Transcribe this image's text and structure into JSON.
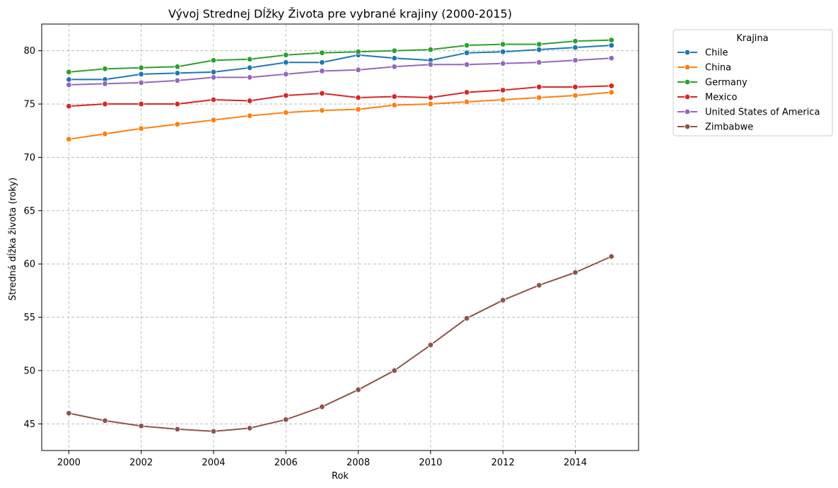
{
  "chart_data": {
    "type": "line",
    "title": "Vývoj Strednej Dĺžky Života pre vybrané krajiny (2000-2015)",
    "xlabel": "Rok",
    "ylabel": "Stredná dĺžka života (roky)",
    "x": [
      2000,
      2001,
      2002,
      2003,
      2004,
      2005,
      2006,
      2007,
      2008,
      2009,
      2010,
      2011,
      2012,
      2013,
      2014,
      2015
    ],
    "xlim": [
      1999.25,
      2015.75
    ],
    "ylim": [
      42.5,
      82.5
    ],
    "xticks": [
      2000,
      2002,
      2004,
      2006,
      2008,
      2010,
      2012,
      2014
    ],
    "xtick_labels": [
      "2000",
      "2002",
      "2004",
      "2006",
      "2008",
      "2010",
      "2012",
      "2014"
    ],
    "yticks": [
      45,
      50,
      55,
      60,
      65,
      70,
      75,
      80
    ],
    "ytick_labels": [
      "45",
      "50",
      "55",
      "60",
      "65",
      "70",
      "75",
      "80"
    ],
    "grid": true,
    "legend": {
      "title": "Krajina",
      "placement": "outside-upper-right"
    },
    "series": [
      {
        "name": "Chile",
        "color": "#1f77b4",
        "values": [
          77.3,
          77.3,
          77.8,
          77.9,
          78.0,
          78.4,
          78.9,
          78.9,
          79.6,
          79.3,
          79.1,
          79.8,
          79.9,
          80.1,
          80.3,
          80.5
        ]
      },
      {
        "name": "China",
        "color": "#ff7f0e",
        "values": [
          71.7,
          72.2,
          72.7,
          73.1,
          73.5,
          73.9,
          74.2,
          74.4,
          74.5,
          74.9,
          75.0,
          75.2,
          75.4,
          75.6,
          75.8,
          76.1
        ]
      },
      {
        "name": "Germany",
        "color": "#2ca02c",
        "values": [
          78.0,
          78.3,
          78.4,
          78.5,
          79.1,
          79.2,
          79.6,
          79.8,
          79.9,
          80.0,
          80.1,
          80.5,
          80.6,
          80.6,
          80.9,
          81.0
        ]
      },
      {
        "name": "Mexico",
        "color": "#d62728",
        "values": [
          74.8,
          75.0,
          75.0,
          75.0,
          75.4,
          75.3,
          75.8,
          76.0,
          75.6,
          75.7,
          75.6,
          76.1,
          76.3,
          76.6,
          76.6,
          76.7
        ]
      },
      {
        "name": "United States of America",
        "color": "#9467bd",
        "values": [
          76.8,
          76.9,
          77.0,
          77.2,
          77.5,
          77.5,
          77.8,
          78.1,
          78.2,
          78.5,
          78.7,
          78.7,
          78.8,
          78.9,
          79.1,
          79.3
        ]
      },
      {
        "name": "Zimbabwe",
        "color": "#8c564b",
        "values": [
          46.0,
          45.3,
          44.8,
          44.5,
          44.3,
          44.6,
          45.4,
          46.6,
          48.2,
          50.0,
          52.4,
          54.9,
          56.6,
          58.0,
          59.2,
          60.7
        ]
      }
    ]
  }
}
